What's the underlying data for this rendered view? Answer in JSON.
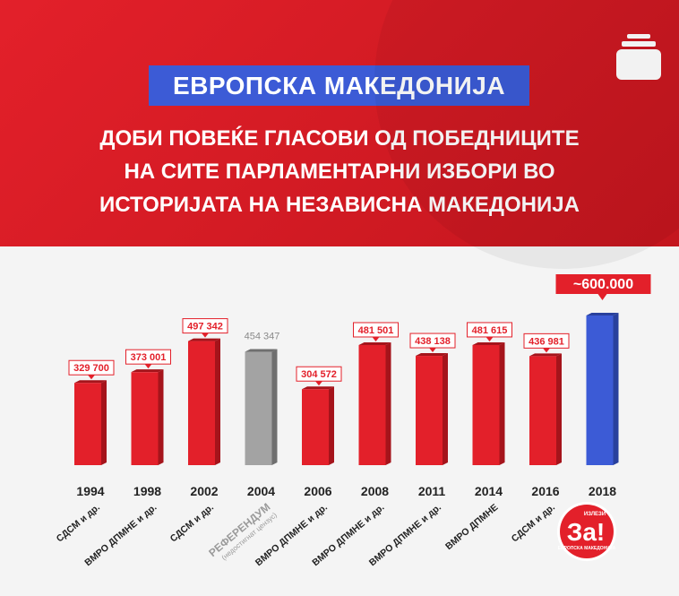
{
  "header": {
    "badge": "ЕВРОПСКА МАКЕДОНИЈА",
    "subtitle_lines": [
      "ДОБИ ПОВЕЌЕ ГЛАСОВИ ОД ПОБЕДНИЦИТЕ",
      "НА СИТЕ ПАРЛАМЕНТАРНИ ИЗБОРИ ВО",
      "ИСТОРИЈАТА НА НЕЗАВИСНА МАКЕДОНИЈА"
    ],
    "icon": "stack-icon"
  },
  "colors": {
    "header_red": "#d71d25",
    "badge_blue": "#3c5bd6",
    "bar_red": "#e3202a",
    "bar_gray": "#a3a3a3",
    "bar_blue": "#3c5bd6"
  },
  "chart_data": {
    "type": "bar",
    "categories": [
      "1994",
      "1998",
      "2002",
      "2004",
      "2006",
      "2008",
      "2011",
      "2014",
      "2016",
      "2018"
    ],
    "values": [
      329700,
      373001,
      497342,
      454347,
      304572,
      481501,
      438138,
      481615,
      436981,
      600000
    ],
    "value_labels": [
      "329 700",
      "373 001",
      "497 342",
      "454 347",
      "304 572",
      "481 501",
      "438 138",
      "481 615",
      "436 981",
      "~600.000"
    ],
    "winners": [
      "СДСМ и др.",
      "ВМРО ДПМНЕ и др.",
      "СДСМ и др.",
      "РЕФЕРЕНДУМ",
      "ВМРО ДПМНЕ и др.",
      "ВМРО ДПМНЕ и др.",
      "ВМРО ДПМНЕ и др.",
      "ВМРО ДПМНЕ",
      "СДСМ и др.",
      ""
    ],
    "winner_notes": [
      "",
      "",
      "",
      "(недостигнат цензус)",
      "",
      "",
      "",
      "",
      "",
      ""
    ],
    "bar_styles": [
      "red",
      "red",
      "red",
      "gray",
      "red",
      "red",
      "red",
      "red",
      "red",
      "blue"
    ],
    "ylim": [
      0,
      600000
    ],
    "grid": false
  },
  "logo": {
    "big_text": "За!",
    "top_text": "ИЗЛЕЗИ",
    "bottom_text": "ЕВРОПСКА МАКЕДОНИЈА",
    "icon": "za-logo-icon"
  }
}
